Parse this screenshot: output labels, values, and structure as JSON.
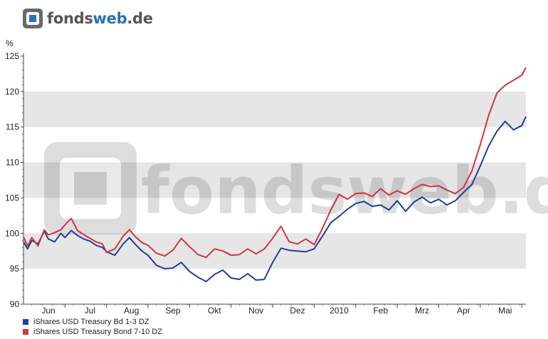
{
  "logo": {
    "text_main": "fonds",
    "text_accent": "web",
    "text_suffix": ".de",
    "watermark": "fondsweb.de"
  },
  "colors": {
    "blue": "#1f3f9f",
    "red": "#d0363c",
    "band": "#e6e6e6",
    "logo_gray": "#555555",
    "logo_accent": "#2a6fc0"
  },
  "chart_data": {
    "type": "line",
    "ylabel": "%",
    "ylim": [
      90,
      125
    ],
    "yticks": [
      90,
      95,
      100,
      105,
      110,
      115,
      120,
      125
    ],
    "x_tick_labels": [
      "Jun",
      "Jul",
      "Aug",
      "Sep",
      "Okt",
      "Nov",
      "Dez",
      "2010",
      "Feb",
      "Mrz",
      "Apr",
      "Mai"
    ],
    "x_tick_pos": [
      1.6,
      2.6,
      3.6,
      4.6,
      5.6,
      6.6,
      7.6,
      8.6,
      9.6,
      10.6,
      11.6,
      12.6
    ],
    "x_range": [
      1,
      13.1
    ],
    "grid": "alternating horizontal bands",
    "legend_position": "bottom-left",
    "series": [
      {
        "name": "iShares USD Treasury Bd 1-3 DZ",
        "color": "#1f3f9f",
        "x": [
          1,
          1.1,
          1.2,
          1.35,
          1.5,
          1.6,
          1.75,
          1.9,
          2.0,
          2.15,
          2.3,
          2.45,
          2.6,
          2.75,
          2.9,
          3.0,
          3.2,
          3.4,
          3.55,
          3.7,
          3.85,
          4.0,
          4.2,
          4.4,
          4.6,
          4.8,
          5.0,
          5.2,
          5.4,
          5.6,
          5.8,
          6.0,
          6.2,
          6.4,
          6.6,
          6.8,
          7.0,
          7.2,
          7.4,
          7.6,
          7.8,
          8.0,
          8.2,
          8.4,
          8.6,
          8.8,
          9.0,
          9.2,
          9.4,
          9.6,
          9.8,
          10.0,
          10.2,
          10.4,
          10.6,
          10.8,
          11.0,
          11.2,
          11.4,
          11.6,
          11.8,
          12.0,
          12.2,
          12.4,
          12.6,
          12.8,
          13.0,
          13.1
        ],
        "values": [
          98.8,
          97.8,
          99.0,
          98.5,
          100.3,
          99.2,
          98.8,
          100.0,
          99.4,
          100.4,
          99.7,
          99.2,
          98.9,
          98.3,
          98.0,
          97.4,
          96.9,
          98.5,
          99.4,
          98.4,
          97.5,
          96.9,
          95.5,
          95.0,
          95.1,
          95.9,
          94.6,
          93.8,
          93.2,
          94.2,
          94.8,
          93.7,
          93.5,
          94.3,
          93.4,
          93.5,
          95.9,
          97.9,
          97.6,
          97.5,
          97.4,
          97.8,
          99.6,
          101.5,
          102.4,
          103.4,
          104.2,
          104.5,
          103.8,
          104.0,
          103.3,
          104.6,
          103.1,
          104.4,
          105.1,
          104.3,
          104.8,
          104.0,
          104.6,
          105.8,
          106.9,
          109.5,
          112.3,
          114.4,
          115.8,
          114.6,
          115.2,
          116.5
        ]
      },
      {
        "name": "iShares USD Treasury Bond 7-10 DZ",
        "color": "#d0363c",
        "x": [
          1,
          1.1,
          1.2,
          1.35,
          1.5,
          1.6,
          1.75,
          1.9,
          2.0,
          2.15,
          2.3,
          2.45,
          2.6,
          2.75,
          2.9,
          3.0,
          3.2,
          3.4,
          3.55,
          3.7,
          3.85,
          4.0,
          4.2,
          4.4,
          4.6,
          4.8,
          5.0,
          5.2,
          5.4,
          5.6,
          5.8,
          6.0,
          6.2,
          6.4,
          6.6,
          6.8,
          7.0,
          7.2,
          7.4,
          7.6,
          7.8,
          8.0,
          8.2,
          8.4,
          8.6,
          8.8,
          9.0,
          9.2,
          9.4,
          9.6,
          9.8,
          10.0,
          10.2,
          10.4,
          10.6,
          10.8,
          11.0,
          11.2,
          11.4,
          11.6,
          11.8,
          12.0,
          12.2,
          12.4,
          12.6,
          12.8,
          13.0,
          13.1
        ],
        "values": [
          99.5,
          98.2,
          99.4,
          98.2,
          100.5,
          99.8,
          100.1,
          100.5,
          101.2,
          102.1,
          100.4,
          99.8,
          99.3,
          98.8,
          98.5,
          97.3,
          97.8,
          99.6,
          100.5,
          99.5,
          98.7,
          98.3,
          97.2,
          96.8,
          97.6,
          99.3,
          98.1,
          97.0,
          96.6,
          97.8,
          97.5,
          96.9,
          97.0,
          97.8,
          97.1,
          97.8,
          99.3,
          101.0,
          98.8,
          98.5,
          99.2,
          98.4,
          100.7,
          103.3,
          105.5,
          104.8,
          105.6,
          105.7,
          105.2,
          106.3,
          105.4,
          106.0,
          105.5,
          106.3,
          106.9,
          106.6,
          106.7,
          106.1,
          105.6,
          106.5,
          108.8,
          112.5,
          116.6,
          119.8,
          120.9,
          121.6,
          122.3,
          123.4
        ]
      }
    ]
  }
}
